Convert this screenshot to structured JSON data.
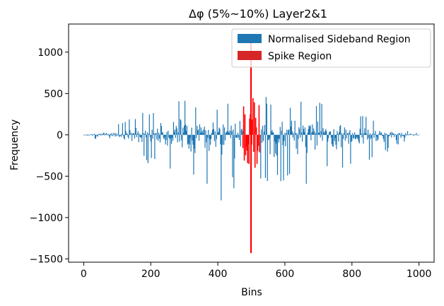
{
  "chart_data": {
    "type": "bar",
    "title": "Δφ (5%~10%) Layer2&1",
    "xlabel": "Bins",
    "ylabel": "Frequency",
    "xlim": [
      -45,
      1045
    ],
    "ylim": [
      -1540,
      1340
    ],
    "xticks": [
      0,
      200,
      400,
      600,
      800,
      1000
    ],
    "xtick_labels": [
      "0",
      "200",
      "400",
      "600",
      "800",
      "1000"
    ],
    "yticks": [
      -1500,
      -1000,
      -500,
      0,
      500,
      1000
    ],
    "ytick_labels": [
      "−1500",
      "−1000",
      "−500",
      "0",
      "500",
      "1000"
    ],
    "grid": false,
    "legend_position": "top-right",
    "series": [
      {
        "name": "Normalised Sideband Region",
        "color": "#1f77b4",
        "x_range": [
          0,
          1000
        ],
        "exclude_range": [
          475,
          525
        ],
        "envelope_bins": [
          0,
          50,
          100,
          150,
          200,
          250,
          300,
          350,
          400,
          450,
          475,
          525,
          550,
          600,
          650,
          700,
          750,
          800,
          850,
          900,
          950,
          1000
        ],
        "envelope_max": [
          20,
          60,
          130,
          210,
          320,
          470,
          430,
          330,
          360,
          420,
          450,
          510,
          470,
          380,
          430,
          400,
          280,
          310,
          210,
          160,
          80,
          20
        ],
        "envelope_min": [
          -20,
          -60,
          -160,
          -260,
          -360,
          -430,
          -490,
          -520,
          -830,
          -650,
          -500,
          -520,
          -600,
          -560,
          -650,
          -540,
          -460,
          -430,
          -340,
          -220,
          -100,
          -20
        ]
      },
      {
        "name": "Spike Region",
        "color": "#d62728",
        "x_range": [
          475,
          525
        ],
        "line_color": "#ff0000",
        "spike_bin": 499,
        "spike_max": 1120,
        "spike_min": -1430,
        "envelope_max": 450,
        "envelope_min": -480
      }
    ]
  }
}
